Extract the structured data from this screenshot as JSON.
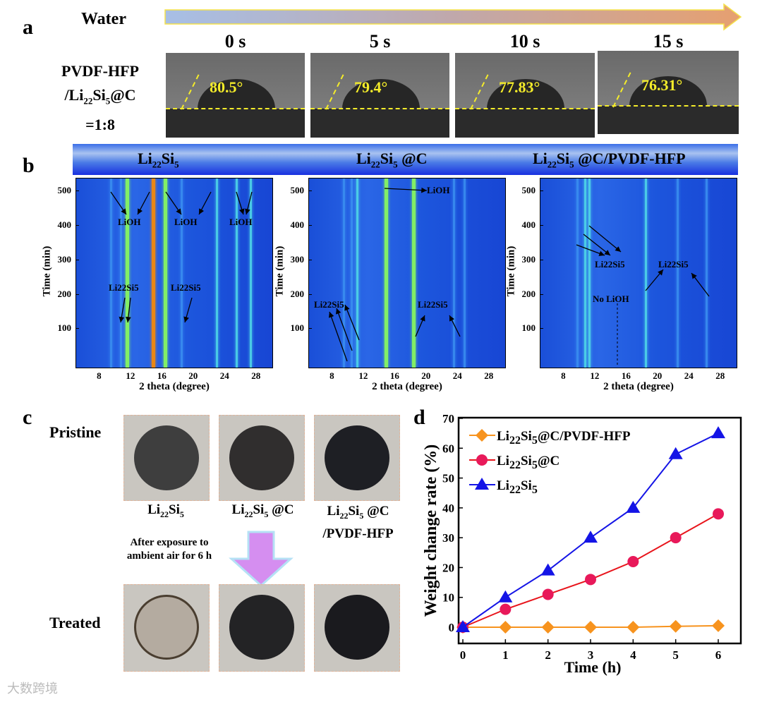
{
  "panel_a": {
    "label": "a",
    "arrow_label": "Water",
    "sample_lines": [
      "PVDF-HFP",
      "/Li",
      "22",
      "Si",
      "5",
      "@C",
      "=1:8"
    ],
    "times": [
      "0 s",
      "5 s",
      "10 s",
      "15 s"
    ],
    "angles": [
      "80.5°",
      "79.4°",
      "77.83°",
      "76.31°"
    ]
  },
  "panel_b": {
    "label": "b",
    "headers": [
      {
        "main": "Li",
        "sub1": "22",
        "mid": "Si",
        "sub2": "5",
        "rest": ""
      },
      {
        "main": "Li",
        "sub1": "22",
        "mid": "Si",
        "sub2": "5",
        "rest": " @C"
      },
      {
        "main": "Li",
        "sub1": "22",
        "mid": "Si",
        "sub2": "5",
        "rest": " @C/PVDF-HFP"
      }
    ],
    "ylabel": "Time (min)",
    "xlabel": "2 theta (degree)",
    "yticks": [
      "100",
      "200",
      "300",
      "400",
      "500"
    ],
    "xticks": [
      "8",
      "12",
      "16",
      "20",
      "24",
      "28"
    ],
    "annotations": {
      "lioh": "LiOH",
      "li22si5": "Li22Si5",
      "no_lioh": "No LiOH"
    }
  },
  "panel_c": {
    "label": "c",
    "row_labels": [
      "Pristine",
      "Treated"
    ],
    "samples": [
      [
        "Li",
        "22",
        "Si",
        "5",
        ""
      ],
      [
        "Li",
        "22",
        "Si",
        "5",
        " @C"
      ],
      [
        "Li",
        "22",
        "Si",
        "5",
        " @C"
      ]
    ],
    "sample3_line2": "/PVDF-HFP",
    "arrow_text": [
      "After exposure to",
      "ambient air for 6 h"
    ]
  },
  "chart_data": {
    "type": "line",
    "panel_label": "d",
    "xlabel": "Time (h)",
    "ylabel": "Weight change rate (%)",
    "x": [
      0,
      1,
      2,
      3,
      4,
      5,
      6
    ],
    "xlim": [
      -0.1,
      6.3
    ],
    "ylim": [
      -8,
      70
    ],
    "xticks": [
      "0",
      "1",
      "2",
      "3",
      "4",
      "5",
      "6"
    ],
    "yticks": [
      "0",
      "10",
      "20",
      "30",
      "40",
      "50",
      "60",
      "70"
    ],
    "legend_position": "top-left",
    "series": [
      {
        "name": "Li22Si5@C/PVDF-HFP",
        "parts": [
          "Li",
          "22",
          "Si",
          "5",
          "@C/PVDF-HFP"
        ],
        "color": "#f7931e",
        "marker": "diamond",
        "values": [
          0,
          0,
          0,
          0,
          0,
          0.3,
          0.5
        ]
      },
      {
        "name": "Li22Si5@C",
        "parts": [
          "Li",
          "22",
          "Si",
          "5",
          "@C"
        ],
        "color": "#e8195a",
        "line": "#e8141b",
        "marker": "circle",
        "values": [
          0,
          6,
          11,
          16,
          22,
          30,
          38
        ]
      },
      {
        "name": "Li22Si5",
        "parts": [
          "Li",
          "22",
          "Si",
          "5",
          ""
        ],
        "color": "#1414e6",
        "marker": "triangle",
        "values": [
          0,
          10,
          19,
          30,
          40,
          58,
          65
        ]
      }
    ]
  },
  "watermark": "大数跨境"
}
